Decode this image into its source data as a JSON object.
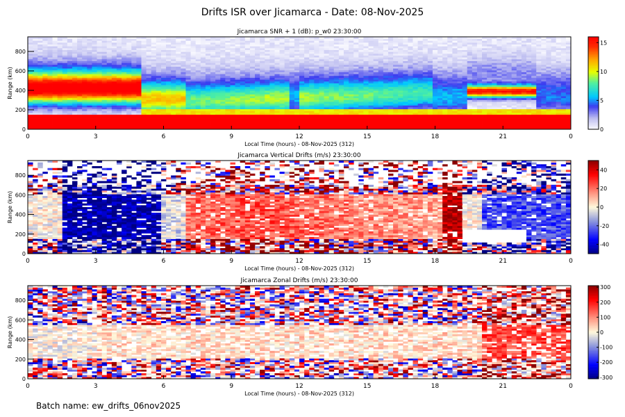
{
  "title": "Drifts ISR over Jicamarca - Date: 08-Nov-2025",
  "footer": "Batch name: ew_drifts_06nov2025",
  "chart_data": [
    {
      "type": "heatmap",
      "title": "Jicamarca SNR + 1 (dB): p_w0 23:30:00",
      "xlabel": "Local Time (hours) - 08-Nov-2025 (312)",
      "ylabel": "Range (km)",
      "xlim": [
        0,
        24
      ],
      "ylim": [
        0,
        950
      ],
      "xticks": [
        "0",
        "3",
        "6",
        "9",
        "12",
        "15",
        "18",
        "21",
        "0"
      ],
      "yticks": [
        "0",
        "200",
        "400",
        "600",
        "800"
      ],
      "colormap": "rainbow",
      "crange": [
        0,
        16
      ],
      "cticks": [
        "0",
        "5",
        "10",
        "15"
      ]
    },
    {
      "type": "heatmap",
      "title": "Jicamarca Vertical Drifts (m/s) 23:30:00",
      "xlabel": "Local Time (hours) - 08-Nov-2025 (312)",
      "ylabel": "Range (km)",
      "xlim": [
        0,
        24
      ],
      "ylim": [
        0,
        950
      ],
      "xticks": [
        "0",
        "3",
        "6",
        "9",
        "12",
        "15",
        "18",
        "21",
        "0"
      ],
      "yticks": [
        "0",
        "200",
        "400",
        "600",
        "800"
      ],
      "colormap": "blue-white-red",
      "crange": [
        -50,
        50
      ],
      "cticks": [
        "-40",
        "-20",
        "0",
        "20",
        "40"
      ]
    },
    {
      "type": "heatmap",
      "title": "Jicamarca Zonal Drifts (m/s) 23:30:00",
      "xlabel": "Local Time (hours) - 08-Nov-2025 (312)",
      "ylabel": "Range (km)",
      "xlim": [
        0,
        24
      ],
      "ylim": [
        0,
        950
      ],
      "xticks": [
        "0",
        "3",
        "6",
        "9",
        "12",
        "15",
        "18",
        "21",
        "0"
      ],
      "yticks": [
        "0",
        "200",
        "400",
        "600",
        "800"
      ],
      "colormap": "blue-white-red",
      "crange": [
        -310,
        310
      ],
      "cticks": [
        "-300",
        "-200",
        "-100",
        "0",
        "100",
        "200",
        "300"
      ]
    }
  ]
}
